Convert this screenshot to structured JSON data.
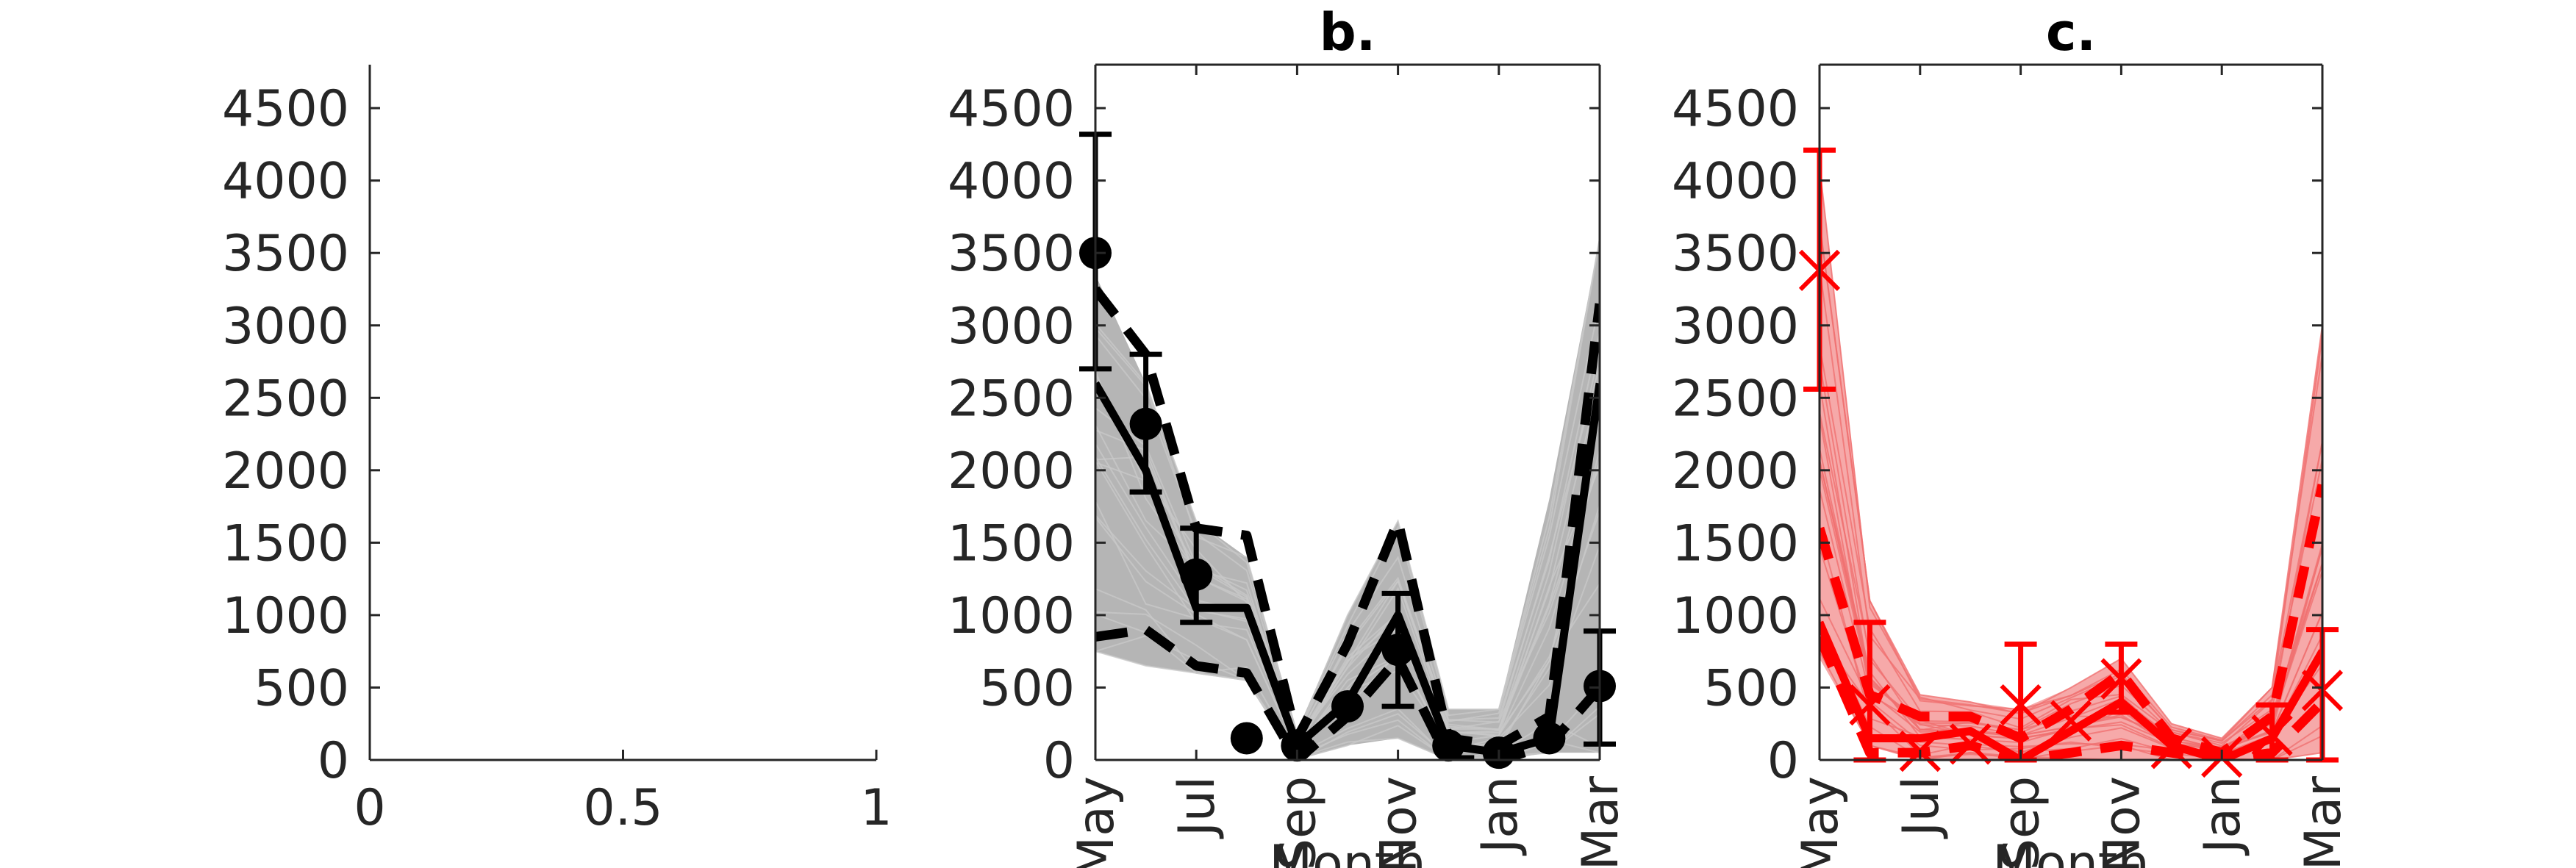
{
  "colors": {
    "black": "#000000",
    "gray": "#a8a8a8",
    "red": "#ff0000",
    "red_band": "#f5a0a0",
    "axis": "#262626"
  },
  "chart_data": [
    {
      "type": "line",
      "title": "",
      "xlabel": "",
      "ylabel": "",
      "xlim": [
        0,
        1
      ],
      "ylim": [
        0,
        4800
      ],
      "x_ticks": [
        0,
        0.5,
        1
      ],
      "x_tick_labels": [
        "0",
        "0.5",
        "1"
      ],
      "y_ticks": [
        0,
        500,
        1000,
        1500,
        2000,
        2500,
        3000,
        3500,
        4000,
        4500
      ],
      "y_tick_labels": [
        "0",
        "500",
        "1000",
        "1500",
        "2000",
        "2500",
        "3000",
        "3500",
        "4000",
        "4500"
      ],
      "box": false,
      "series": []
    },
    {
      "type": "line",
      "title": "b.",
      "xlabel": "Month",
      "ylabel": "",
      "xlim": [
        1,
        11
      ],
      "ylim": [
        0,
        4800
      ],
      "x_ticks": [
        1,
        3,
        5,
        7,
        9,
        11
      ],
      "x_tick_labels": [
        "May",
        "Jul",
        "Sep",
        "Nov",
        "Jan",
        "Mar"
      ],
      "y_ticks": [
        0,
        500,
        1000,
        1500,
        2000,
        2500,
        3000,
        3500,
        4000,
        4500
      ],
      "y_tick_labels": [
        "0",
        "500",
        "1000",
        "1500",
        "2000",
        "2500",
        "3000",
        "3500",
        "4000",
        "4500"
      ],
      "box": true,
      "ensemble_band": {
        "x": [
          1,
          2,
          3,
          4,
          5,
          6,
          7,
          8,
          9,
          10,
          11
        ],
        "upper": [
          3350,
          2600,
          1650,
          1400,
          200,
          1000,
          1650,
          350,
          350,
          1800,
          3600
        ],
        "lower": [
          750,
          650,
          600,
          550,
          0,
          100,
          150,
          0,
          0,
          50,
          50
        ]
      },
      "median": {
        "x": [
          1,
          2,
          3,
          4,
          5,
          6,
          7,
          8,
          9,
          10,
          11
        ],
        "y": [
          2600,
          2000,
          1050,
          1050,
          100,
          400,
          1000,
          100,
          50,
          150,
          2600
        ]
      },
      "bounds": [
        {
          "x": [
            1,
            2,
            3,
            4,
            5,
            6,
            7,
            8,
            9,
            10,
            11
          ],
          "y": [
            3250,
            2800,
            1600,
            1550,
            150,
            800,
            1650,
            150,
            100,
            300,
            3150
          ]
        },
        {
          "x": [
            1,
            2,
            3,
            4,
            5,
            6,
            7,
            8,
            9,
            10,
            11
          ],
          "y": [
            850,
            900,
            650,
            600,
            0,
            300,
            700,
            0,
            0,
            100,
            500
          ]
        }
      ],
      "observations": {
        "marker": "dot",
        "x": [
          1,
          2,
          3,
          4,
          5,
          6,
          7,
          8,
          9,
          10,
          11
        ],
        "y": [
          3500,
          2320,
          1280,
          150,
          100,
          370,
          760,
          100,
          50,
          150,
          510
        ],
        "err_low": [
          2700,
          1850,
          950,
          null,
          null,
          null,
          370,
          null,
          null,
          null,
          110
        ],
        "err_high": [
          4320,
          2800,
          1600,
          null,
          null,
          null,
          1150,
          null,
          null,
          null,
          890
        ]
      }
    },
    {
      "type": "line",
      "title": "c.",
      "xlabel": "Month",
      "ylabel": "",
      "xlim": [
        1,
        11
      ],
      "ylim": [
        0,
        4800
      ],
      "x_ticks": [
        1,
        3,
        5,
        7,
        9,
        11
      ],
      "x_tick_labels": [
        "May",
        "Jul",
        "Sep",
        "Nov",
        "Jan",
        "Mar"
      ],
      "y_ticks": [
        0,
        500,
        1000,
        1500,
        2000,
        2500,
        3000,
        3500,
        4000,
        4500
      ],
      "y_tick_labels": [
        "0",
        "500",
        "1000",
        "1500",
        "2000",
        "2500",
        "3000",
        "3500",
        "4000",
        "4500"
      ],
      "box": true,
      "ensemble_band": {
        "x": [
          1,
          2,
          3,
          4,
          5,
          6,
          7,
          8,
          9,
          10,
          11
        ],
        "upper": [
          4100,
          1100,
          450,
          400,
          350,
          500,
          700,
          250,
          150,
          500,
          3000
        ],
        "lower": [
          700,
          100,
          0,
          0,
          0,
          0,
          0,
          0,
          0,
          0,
          50
        ]
      },
      "median": {
        "x": [
          1,
          2,
          3,
          4,
          5,
          6,
          7,
          8,
          9,
          10,
          11
        ],
        "y": [
          950,
          150,
          150,
          200,
          0,
          200,
          400,
          100,
          0,
          150,
          750
        ]
      },
      "bounds": [
        {
          "x": [
            1,
            2,
            3,
            4,
            5,
            6,
            7,
            8,
            9,
            10,
            11
          ],
          "y": [
            1600,
            450,
            300,
            300,
            150,
            350,
            600,
            150,
            50,
            300,
            1900
          ]
        },
        {
          "x": [
            1,
            2,
            3,
            4,
            5,
            6,
            7,
            8,
            9,
            10,
            11
          ],
          "y": [
            850,
            50,
            50,
            100,
            0,
            50,
            100,
            50,
            0,
            50,
            400
          ]
        }
      ],
      "observations": {
        "marker": "x",
        "x": [
          1,
          2,
          3,
          4,
          5,
          6,
          7,
          8,
          9,
          10,
          11
        ],
        "y": [
          3380,
          380,
          60,
          110,
          380,
          270,
          560,
          80,
          20,
          170,
          480
        ],
        "err_low": [
          2560,
          0,
          null,
          null,
          0,
          null,
          330,
          null,
          null,
          0,
          0
        ],
        "err_high": [
          4210,
          950,
          null,
          null,
          800,
          null,
          800,
          null,
          null,
          380,
          900
        ]
      }
    }
  ]
}
